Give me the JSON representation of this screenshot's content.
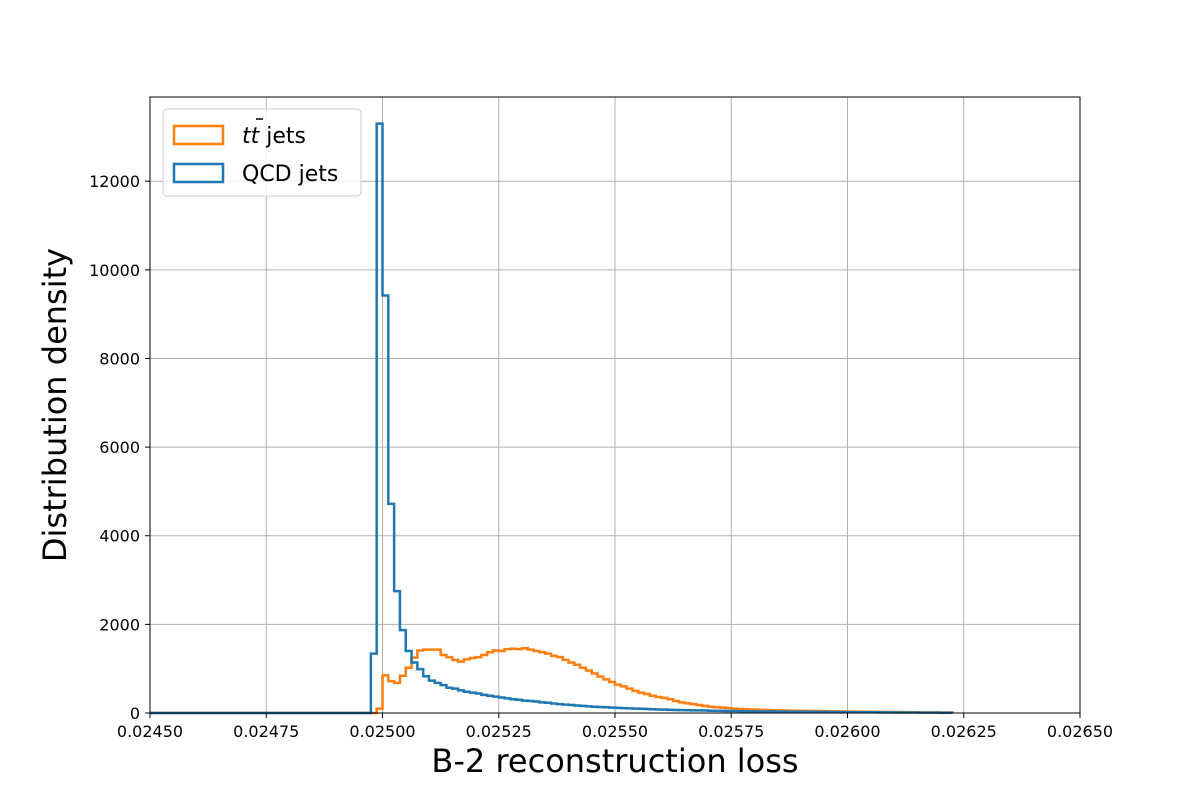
{
  "chart_data": {
    "type": "histogram",
    "xlabel": "B-2 reconstruction loss",
    "ylabel": "Distribution density",
    "xlim": [
      0.0245,
      0.0265
    ],
    "ylim": [
      0,
      13900
    ],
    "grid": true,
    "legend_position": "top-left",
    "x_ticks": [
      "0.02450",
      "0.02475",
      "0.02500",
      "0.02525",
      "0.02550",
      "0.02575",
      "0.02600",
      "0.02625",
      "0.02650"
    ],
    "x_tick_values": [
      0.0245,
      0.02475,
      0.025,
      0.02525,
      0.0255,
      0.02575,
      0.026,
      0.02625,
      0.0265
    ],
    "y_ticks": [
      "0",
      "2000",
      "4000",
      "6000",
      "8000",
      "10000",
      "12000"
    ],
    "y_tick_values": [
      0,
      2000,
      4000,
      6000,
      8000,
      10000,
      12000
    ],
    "bin_edges_start": 0.0245,
    "bin_width": 1.25e-05,
    "series": [
      {
        "name": "tt̄ jets",
        "legend_main": "tt",
        "legend_suffix": " jets",
        "color": "#ff7f0e",
        "values": [
          0,
          0,
          0,
          0,
          0,
          0,
          0,
          0,
          0,
          0,
          0,
          0,
          0,
          0,
          0,
          0,
          0,
          0,
          0,
          0,
          0,
          0,
          0,
          0,
          0,
          0,
          0,
          0,
          0,
          0,
          0,
          0,
          0,
          0,
          0,
          0,
          0,
          0,
          0,
          100,
          850,
          720,
          680,
          840,
          1020,
          1250,
          1410,
          1430,
          1430,
          1430,
          1310,
          1260,
          1200,
          1160,
          1210,
          1240,
          1260,
          1310,
          1370,
          1410,
          1400,
          1440,
          1450,
          1440,
          1460,
          1430,
          1400,
          1370,
          1340,
          1290,
          1260,
          1200,
          1140,
          1090,
          1020,
          960,
          890,
          820,
          760,
          700,
          640,
          600,
          550,
          500,
          460,
          430,
          390,
          360,
          340,
          310,
          270,
          240,
          220,
          200,
          180,
          160,
          140,
          130,
          120,
          110,
          100,
          90,
          85,
          80,
          75,
          70,
          65,
          60,
          58,
          55,
          52,
          50,
          48,
          46,
          44,
          42,
          40,
          38,
          36,
          35,
          33,
          32,
          30,
          28,
          26,
          25,
          24,
          23,
          22,
          20,
          18,
          17,
          16,
          15,
          14,
          13,
          12,
          10
        ]
      },
      {
        "name": "QCD jets",
        "legend_main": "QCD jets",
        "legend_suffix": "",
        "color": "#1f77b4",
        "values": [
          0,
          0,
          0,
          0,
          0,
          0,
          0,
          0,
          0,
          0,
          0,
          0,
          0,
          0,
          0,
          0,
          0,
          0,
          0,
          0,
          0,
          0,
          0,
          0,
          0,
          0,
          0,
          0,
          0,
          0,
          0,
          0,
          0,
          0,
          0,
          0,
          0,
          0,
          1340,
          13300,
          9420,
          4720,
          2750,
          1870,
          1400,
          1140,
          990,
          830,
          730,
          680,
          630,
          570,
          550,
          510,
          480,
          460,
          440,
          410,
          390,
          370,
          350,
          330,
          310,
          300,
          280,
          270,
          260,
          240,
          230,
          215,
          200,
          190,
          180,
          170,
          160,
          150,
          140,
          135,
          130,
          120,
          115,
          110,
          105,
          100,
          95,
          90,
          85,
          80,
          75,
          70,
          68,
          65,
          62,
          60,
          58,
          55,
          52,
          50,
          48,
          46,
          44,
          42,
          40,
          38,
          36,
          35,
          34,
          33,
          32,
          31,
          30,
          29,
          28,
          27,
          26,
          25,
          24,
          23,
          22,
          21,
          20,
          19,
          18,
          17,
          16,
          15,
          14,
          13,
          12,
          11,
          10,
          10,
          9,
          9,
          8,
          8,
          7,
          7
        ]
      }
    ]
  }
}
